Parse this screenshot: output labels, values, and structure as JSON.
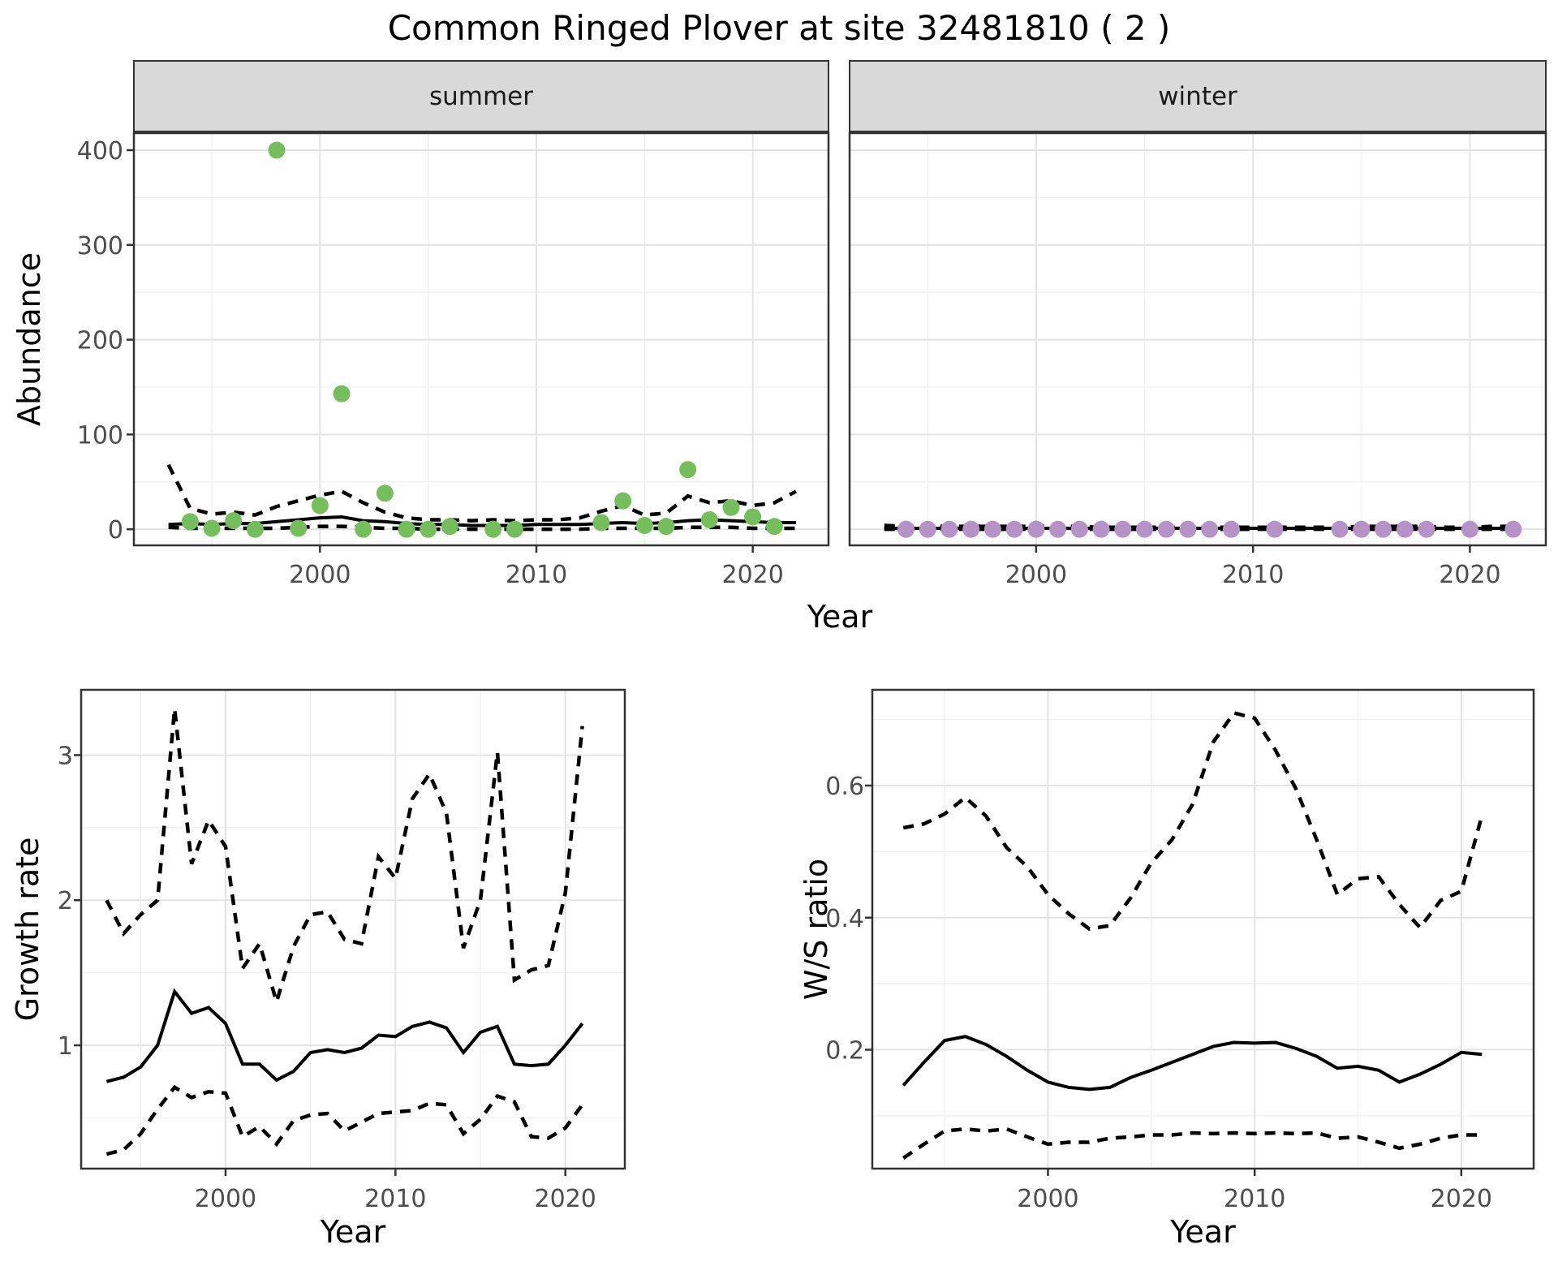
{
  "title": "Common Ringed Plover at site 32481810 ( 2 )",
  "colors": {
    "background": "#FFFFFF",
    "summer_point": "#74BF5B",
    "winter_point": "#B593C7",
    "line": "#000000",
    "strip_background": "#D9D9D9",
    "panel_border": "#333333",
    "grid_major": "#E3E3E3",
    "grid_minor": "#F1F1F1",
    "tick_text": "#4D4D4D"
  },
  "chart_data": [
    {
      "id": "abundance-summer",
      "type": "scatter",
      "facet_label": "summer",
      "xlabel": "Year",
      "ylabel": "Abundance",
      "xlim": [
        1991.4,
        2023.5
      ],
      "ylim": [
        -17,
        418
      ],
      "x_ticks": [
        2000,
        2010,
        2020
      ],
      "x_minor": [
        1995,
        2005,
        2015
      ],
      "y_ticks": [
        0,
        100,
        200,
        300,
        400
      ],
      "y_tick_labels": [
        "0",
        "100",
        "200",
        "300",
        "400"
      ],
      "y_minor": [
        50,
        150,
        250,
        350
      ],
      "point_color": "#74BF5B",
      "points": {
        "x": [
          1994,
          1995,
          1996,
          1997,
          1998,
          1999,
          2000,
          2001,
          2002,
          2003,
          2004,
          2005,
          2006,
          2008,
          2009,
          2013,
          2014,
          2015,
          2016,
          2017,
          2018,
          2019,
          2020,
          2021
        ],
        "y": [
          8,
          1,
          9,
          0,
          400,
          1,
          25,
          143,
          0,
          38,
          0,
          0,
          3,
          0,
          0,
          7,
          30,
          4,
          3,
          63,
          10,
          23,
          13,
          3
        ]
      },
      "mean_line": {
        "x": [
          1993,
          1994,
          1995,
          1996,
          1997,
          1998,
          1999,
          2000,
          2001,
          2002,
          2003,
          2004,
          2005,
          2006,
          2007,
          2008,
          2009,
          2010,
          2011,
          2012,
          2013,
          2014,
          2015,
          2016,
          2017,
          2018,
          2019,
          2020,
          2021,
          2022
        ],
        "y": [
          5,
          6,
          5,
          6,
          6,
          8,
          10,
          12,
          13,
          9,
          8,
          6,
          5,
          5,
          4,
          4,
          4,
          5,
          5,
          5,
          6,
          7,
          6,
          7,
          9,
          10,
          9,
          8,
          7,
          7
        ]
      },
      "upper_ci": {
        "x": [
          1993,
          1994,
          1995,
          1996,
          1997,
          1998,
          1999,
          2000,
          2001,
          2002,
          2003,
          2004,
          2005,
          2006,
          2007,
          2008,
          2009,
          2010,
          2011,
          2012,
          2013,
          2014,
          2015,
          2016,
          2017,
          2018,
          2019,
          2020,
          2021,
          2022
        ],
        "y": [
          68,
          22,
          16,
          18,
          15,
          24,
          30,
          36,
          40,
          28,
          18,
          12,
          10,
          10,
          9,
          10,
          9,
          10,
          10,
          12,
          19,
          25,
          15,
          17,
          35,
          28,
          30,
          25,
          28,
          40
        ]
      },
      "lower_ci": {
        "x": [
          1993,
          1994,
          1995,
          1996,
          1997,
          1998,
          1999,
          2000,
          2001,
          2002,
          2003,
          2004,
          2005,
          2006,
          2007,
          2008,
          2009,
          2010,
          2011,
          2012,
          2013,
          2014,
          2015,
          2016,
          2017,
          2018,
          2019,
          2020,
          2021,
          2022
        ],
        "y": [
          2,
          1,
          1,
          1,
          1,
          1,
          2,
          3,
          3,
          2,
          1,
          1,
          0,
          0,
          0,
          0,
          0,
          0,
          0,
          0,
          1,
          1,
          1,
          1,
          2,
          2,
          2,
          1,
          1,
          1
        ]
      }
    },
    {
      "id": "abundance-winter",
      "type": "scatter",
      "facet_label": "winter",
      "xlabel": "Year",
      "ylabel": "Abundance",
      "xlim": [
        1991.4,
        2023.5
      ],
      "ylim": [
        -17,
        418
      ],
      "x_ticks": [
        2000,
        2010,
        2020
      ],
      "x_minor": [
        1995,
        2005,
        2015
      ],
      "y_ticks": [
        0,
        100,
        200,
        300,
        400
      ],
      "y_tick_labels": [
        "0",
        "100",
        "200",
        "300",
        "400"
      ],
      "y_minor": [
        50,
        150,
        250,
        350
      ],
      "point_color": "#B593C7",
      "points": {
        "x": [
          1994,
          1995,
          1996,
          1997,
          1998,
          1999,
          2000,
          2001,
          2002,
          2003,
          2004,
          2005,
          2006,
          2007,
          2008,
          2009,
          2011,
          2014,
          2015,
          2016,
          2017,
          2018,
          2020,
          2022
        ],
        "y": [
          0,
          0,
          0,
          0,
          0,
          0,
          0,
          0,
          0,
          0,
          0,
          0,
          0,
          0,
          0,
          0,
          0,
          0,
          0,
          0,
          0,
          0,
          0,
          0
        ]
      },
      "mean_line": {
        "x": [
          1993,
          1994,
          1995,
          1996,
          1997,
          1998,
          1999,
          2000,
          2001,
          2002,
          2003,
          2004,
          2005,
          2006,
          2007,
          2008,
          2009,
          2010,
          2011,
          2012,
          2013,
          2014,
          2015,
          2016,
          2017,
          2018,
          2019,
          2020,
          2021,
          2022
        ],
        "y": [
          1,
          1,
          1,
          1,
          1,
          1,
          1,
          1,
          1,
          1,
          1,
          1,
          1,
          1,
          1,
          1,
          1,
          1,
          1,
          1,
          1,
          1,
          1,
          1,
          1,
          1,
          1,
          1,
          1,
          1
        ]
      },
      "upper_ci": {
        "x": [
          1993,
          1994,
          1995,
          1996,
          1997,
          1998,
          1999,
          2000,
          2001,
          2002,
          2003,
          2004,
          2005,
          2006,
          2007,
          2008,
          2009,
          2010,
          2011,
          2012,
          2013,
          2014,
          2015,
          2016,
          2017,
          2018,
          2019,
          2020,
          2021,
          2022
        ],
        "y": [
          4,
          3,
          3,
          3,
          3,
          3,
          3,
          3,
          3,
          3,
          2,
          2,
          2,
          2,
          2,
          2,
          2,
          2,
          2,
          2,
          2,
          2,
          3,
          3,
          3,
          3,
          2,
          2,
          3,
          3
        ]
      },
      "lower_ci": {
        "x": [
          1993,
          1994,
          1995,
          1996,
          1997,
          1998,
          1999,
          2000,
          2001,
          2002,
          2003,
          2004,
          2005,
          2006,
          2007,
          2008,
          2009,
          2010,
          2011,
          2012,
          2013,
          2014,
          2015,
          2016,
          2017,
          2018,
          2019,
          2020,
          2021,
          2022
        ],
        "y": [
          0,
          0,
          0,
          0,
          0,
          0,
          0,
          0,
          0,
          0,
          0,
          0,
          0,
          0,
          0,
          0,
          0,
          0,
          0,
          0,
          0,
          0,
          0,
          0,
          0,
          0,
          0,
          0,
          0,
          0
        ]
      }
    },
    {
      "id": "growth-rate",
      "type": "line",
      "facet_label": "",
      "xlabel": "Year",
      "ylabel": "Growth rate",
      "xlim": [
        1991.5,
        2023.5
      ],
      "ylim": [
        0.15,
        3.45
      ],
      "x_ticks": [
        2000,
        2010,
        2020
      ],
      "x_minor": [
        1995,
        2005,
        2015
      ],
      "y_ticks": [
        1,
        2,
        3
      ],
      "y_tick_labels": [
        "1",
        "2",
        "3"
      ],
      "y_minor": [
        0.5,
        1.5,
        2.5
      ],
      "point_color": "#000000",
      "points": {
        "x": [],
        "y": []
      },
      "mean_line": {
        "x": [
          1993,
          1994,
          1995,
          1996,
          1997,
          1998,
          1999,
          2000,
          2001,
          2002,
          2003,
          2004,
          2005,
          2006,
          2007,
          2008,
          2009,
          2010,
          2011,
          2012,
          2013,
          2014,
          2015,
          2016,
          2017,
          2018,
          2019,
          2020,
          2021
        ],
        "y": [
          0.75,
          0.78,
          0.85,
          1.0,
          1.37,
          1.22,
          1.26,
          1.15,
          0.87,
          0.87,
          0.76,
          0.82,
          0.95,
          0.97,
          0.95,
          0.98,
          1.07,
          1.06,
          1.13,
          1.16,
          1.12,
          0.95,
          1.09,
          1.13,
          0.87,
          0.86,
          0.87,
          1.0,
          1.15
        ]
      },
      "upper_ci": {
        "x": [
          1993,
          1994,
          1995,
          1996,
          1997,
          1998,
          1999,
          2000,
          2001,
          2002,
          2003,
          2004,
          2005,
          2006,
          2007,
          2008,
          2009,
          2010,
          2011,
          2012,
          2013,
          2014,
          2015,
          2016,
          2017,
          2018,
          2019,
          2020,
          2021
        ],
        "y": [
          2.0,
          1.77,
          1.9,
          2.0,
          3.32,
          2.25,
          2.55,
          2.37,
          1.53,
          1.7,
          1.3,
          1.68,
          1.9,
          1.92,
          1.73,
          1.7,
          2.3,
          2.15,
          2.7,
          2.87,
          2.6,
          1.67,
          2.0,
          3.02,
          1.45,
          1.52,
          1.55,
          2.05,
          3.2
        ]
      },
      "lower_ci": {
        "x": [
          1993,
          1994,
          1995,
          1996,
          1997,
          1998,
          1999,
          2000,
          2001,
          2002,
          2003,
          2004,
          2005,
          2006,
          2007,
          2008,
          2009,
          2010,
          2011,
          2012,
          2013,
          2014,
          2015,
          2016,
          2017,
          2018,
          2019,
          2020,
          2021
        ],
        "y": [
          0.25,
          0.28,
          0.39,
          0.56,
          0.71,
          0.64,
          0.68,
          0.67,
          0.37,
          0.44,
          0.32,
          0.48,
          0.52,
          0.53,
          0.41,
          0.47,
          0.53,
          0.54,
          0.55,
          0.6,
          0.59,
          0.39,
          0.49,
          0.65,
          0.61,
          0.37,
          0.36,
          0.43,
          0.59
        ]
      }
    },
    {
      "id": "ws-ratio",
      "type": "line",
      "facet_label": "",
      "xlabel": "Year",
      "ylabel": "W/S ratio",
      "xlim": [
        1991.5,
        2023.5
      ],
      "ylim": [
        0.02,
        0.745
      ],
      "x_ticks": [
        2000,
        2010,
        2020
      ],
      "x_minor": [
        1995,
        2005,
        2015
      ],
      "y_ticks": [
        0.2,
        0.4,
        0.6
      ],
      "y_tick_labels": [
        "0.2",
        "0.4",
        "0.6"
      ],
      "y_minor": [
        0.1,
        0.3,
        0.5,
        0.7
      ],
      "point_color": "#000000",
      "points": {
        "x": [],
        "y": []
      },
      "mean_line": {
        "x": [
          1993,
          1994,
          1995,
          1996,
          1997,
          1998,
          1999,
          2000,
          2001,
          2002,
          2003,
          2004,
          2005,
          2006,
          2007,
          2008,
          2009,
          2010,
          2011,
          2012,
          2013,
          2014,
          2015,
          2016,
          2017,
          2018,
          2019,
          2020,
          2021
        ],
        "y": [
          0.146,
          0.181,
          0.214,
          0.22,
          0.208,
          0.19,
          0.169,
          0.151,
          0.143,
          0.14,
          0.143,
          0.158,
          0.169,
          0.181,
          0.193,
          0.205,
          0.211,
          0.21,
          0.211,
          0.202,
          0.19,
          0.172,
          0.175,
          0.169,
          0.151,
          0.163,
          0.178,
          0.196,
          0.193
        ]
      },
      "upper_ci": {
        "x": [
          1993,
          1994,
          1995,
          1996,
          1997,
          1998,
          1999,
          2000,
          2001,
          2002,
          2003,
          2004,
          2005,
          2006,
          2007,
          2008,
          2009,
          2010,
          2011,
          2012,
          2013,
          2014,
          2015,
          2016,
          2017,
          2018,
          2019,
          2020,
          2021
        ],
        "y": [
          0.536,
          0.542,
          0.557,
          0.582,
          0.554,
          0.506,
          0.477,
          0.435,
          0.406,
          0.383,
          0.388,
          0.43,
          0.483,
          0.518,
          0.572,
          0.666,
          0.71,
          0.702,
          0.654,
          0.595,
          0.518,
          0.435,
          0.459,
          0.462,
          0.42,
          0.385,
          0.426,
          0.44,
          0.555
        ]
      },
      "lower_ci": {
        "x": [
          1993,
          1994,
          1995,
          1996,
          1997,
          1998,
          1999,
          2000,
          2001,
          2002,
          2003,
          2004,
          2005,
          2006,
          2007,
          2008,
          2009,
          2010,
          2011,
          2012,
          2013,
          2014,
          2015,
          2016,
          2017,
          2018,
          2019,
          2020,
          2021
        ],
        "y": [
          0.036,
          0.057,
          0.077,
          0.08,
          0.077,
          0.08,
          0.068,
          0.057,
          0.06,
          0.06,
          0.066,
          0.068,
          0.071,
          0.071,
          0.074,
          0.073,
          0.074,
          0.073,
          0.074,
          0.073,
          0.074,
          0.066,
          0.068,
          0.06,
          0.051,
          0.057,
          0.066,
          0.071,
          0.071
        ]
      }
    }
  ]
}
